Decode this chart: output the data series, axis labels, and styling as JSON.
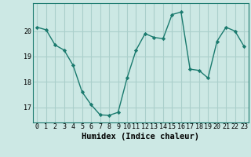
{
  "x": [
    0,
    1,
    2,
    3,
    4,
    5,
    6,
    7,
    8,
    9,
    10,
    11,
    12,
    13,
    14,
    15,
    16,
    17,
    18,
    19,
    20,
    21,
    22,
    23
  ],
  "y": [
    20.15,
    20.05,
    19.45,
    19.25,
    18.65,
    17.6,
    17.1,
    16.7,
    16.68,
    16.8,
    18.15,
    19.25,
    19.9,
    19.75,
    19.7,
    20.65,
    20.75,
    18.5,
    18.45,
    18.15,
    19.6,
    20.15,
    20.0,
    19.4
  ],
  "line_color": "#1a7a6e",
  "marker": "D",
  "marker_size": 2.2,
  "bg_color": "#cce8e4",
  "grid_color": "#aacfcb",
  "xlabel": "Humidex (Indice chaleur)",
  "ylim": [
    16.4,
    21.1
  ],
  "xlim": [
    -0.5,
    23.5
  ],
  "yticks": [
    17,
    18,
    19,
    20
  ],
  "xticks": [
    0,
    1,
    2,
    3,
    4,
    5,
    6,
    7,
    8,
    9,
    10,
    11,
    12,
    13,
    14,
    15,
    16,
    17,
    18,
    19,
    20,
    21,
    22,
    23
  ],
  "label_fontsize": 7.5,
  "tick_fontsize": 6.0,
  "linewidth": 1.0
}
